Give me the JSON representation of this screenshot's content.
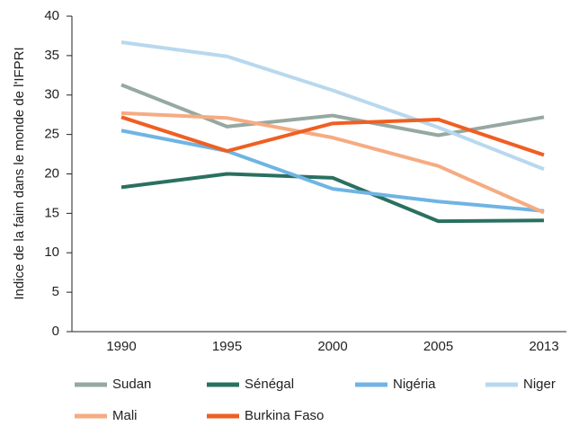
{
  "chart_data": {
    "type": "line",
    "y_label": "Indice de la faim dans le monde de l'IFPRI",
    "categories": [
      "1990",
      "1995",
      "2000",
      "2005",
      "2013"
    ],
    "series": [
      {
        "name": "Sudan",
        "color": "#96a8a0",
        "values": [
          31.3,
          26.0,
          27.4,
          24.9,
          27.2
        ]
      },
      {
        "name": "Sénégal",
        "color": "#2a7060",
        "values": [
          18.3,
          20.0,
          19.5,
          14.0,
          14.1
        ]
      },
      {
        "name": "Nigéria",
        "color": "#6fb4e4",
        "values": [
          25.5,
          22.9,
          18.1,
          16.5,
          15.3
        ]
      },
      {
        "name": "Niger",
        "color": "#b8d8ee",
        "values": [
          36.7,
          34.9,
          30.6,
          25.9,
          20.6
        ]
      },
      {
        "name": "Mali",
        "color": "#f6ab82",
        "values": [
          27.7,
          27.1,
          24.6,
          21.0,
          15.1
        ]
      },
      {
        "name": "Burkina Faso",
        "color": "#ef5f22",
        "values": [
          27.2,
          22.9,
          26.4,
          26.9,
          22.4
        ]
      }
    ],
    "ylim": [
      0,
      40
    ],
    "yticks": [
      0,
      5,
      10,
      15,
      20,
      25,
      30,
      35,
      40
    ],
    "grid": false
  }
}
